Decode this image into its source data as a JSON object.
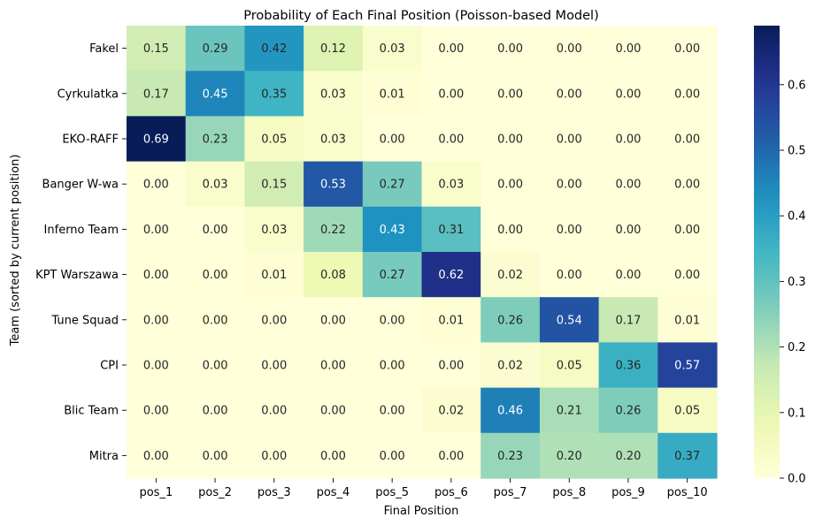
{
  "chart_data": {
    "type": "heatmap",
    "title": "Probability of Each Final Position (Poisson-based Model)",
    "xlabel": "Final Position",
    "ylabel": "Team (sorted by current position)",
    "x": [
      "pos_1",
      "pos_2",
      "pos_3",
      "pos_4",
      "pos_5",
      "pos_6",
      "pos_7",
      "pos_8",
      "pos_9",
      "pos_10"
    ],
    "y": [
      "Fakel",
      "Cyrkulatka",
      "EKO-RAFF",
      "Banger W-wa",
      "Inferno Team",
      "KPT Warszawa",
      "Tune Squad",
      "CPI",
      "Blic Team",
      "Mitra"
    ],
    "values": [
      [
        0.15,
        0.29,
        0.42,
        0.12,
        0.03,
        0.0,
        0.0,
        0.0,
        0.0,
        0.0
      ],
      [
        0.17,
        0.45,
        0.35,
        0.03,
        0.01,
        0.0,
        0.0,
        0.0,
        0.0,
        0.0
      ],
      [
        0.69,
        0.23,
        0.05,
        0.03,
        0.0,
        0.0,
        0.0,
        0.0,
        0.0,
        0.0
      ],
      [
        0.0,
        0.03,
        0.15,
        0.53,
        0.27,
        0.03,
        0.0,
        0.0,
        0.0,
        0.0
      ],
      [
        0.0,
        0.0,
        0.03,
        0.22,
        0.43,
        0.31,
        0.0,
        0.0,
        0.0,
        0.0
      ],
      [
        0.0,
        0.0,
        0.01,
        0.08,
        0.27,
        0.62,
        0.02,
        0.0,
        0.0,
        0.0
      ],
      [
        0.0,
        0.0,
        0.0,
        0.0,
        0.0,
        0.01,
        0.26,
        0.54,
        0.17,
        0.01
      ],
      [
        0.0,
        0.0,
        0.0,
        0.0,
        0.0,
        0.0,
        0.02,
        0.05,
        0.36,
        0.57
      ],
      [
        0.0,
        0.0,
        0.0,
        0.0,
        0.0,
        0.02,
        0.46,
        0.21,
        0.26,
        0.05
      ],
      [
        0.0,
        0.0,
        0.0,
        0.0,
        0.0,
        0.0,
        0.23,
        0.2,
        0.2,
        0.37
      ]
    ],
    "colormap": "YlGnBu",
    "color_range": [
      0,
      0.69
    ],
    "colorbar_ticks": [
      "0.0",
      "0.1",
      "0.2",
      "0.3",
      "0.4",
      "0.5",
      "0.6"
    ],
    "annotation_format": "0.00",
    "grid": false
  }
}
